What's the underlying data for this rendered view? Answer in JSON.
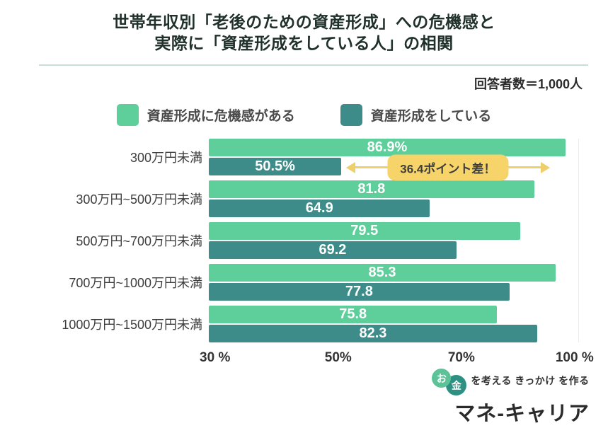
{
  "title": {
    "line1": "世帯年収別「老後のための資産形成」への危機感と",
    "line2": "実際に「資産形成をしている人」の相関"
  },
  "respondents": "回答者数＝1,000人",
  "legend": [
    {
      "label": "資産形成に危機感がある",
      "color": "#5ecf9a"
    },
    {
      "label": "資産形成をしている",
      "color": "#3e8c89"
    }
  ],
  "chart_data": {
    "type": "bar",
    "orientation": "horizontal",
    "title": "世帯年収別「老後のための資産形成」への危機感と実際に「資産形成をしている人」の相関",
    "categories": [
      "300万円未満",
      "300万円~500万円未満",
      "500万円~700万円未満",
      "700万円~1000万円未満",
      "1000万円~1500万円未満"
    ],
    "series": [
      {
        "name": "資産形成に危機感がある",
        "color": "#5ecf9a",
        "values": [
          86.9,
          81.8,
          79.5,
          85.3,
          75.8
        ],
        "value_labels": [
          "86.9%",
          "81.8",
          "79.5",
          "85.3",
          "75.8"
        ]
      },
      {
        "name": "資産形成をしている",
        "color": "#3e8c89",
        "values": [
          50.5,
          64.9,
          69.2,
          77.8,
          82.3
        ],
        "value_labels": [
          "50.5%",
          "64.9",
          "69.2",
          "77.8",
          "82.3"
        ]
      }
    ],
    "xlim": [
      30,
      100
    ],
    "ticks": [
      {
        "label": "30 %",
        "value": 30
      },
      {
        "label": "50%",
        "value": 50
      },
      {
        "label": "70%",
        "value": 70
      },
      {
        "label": "100 %",
        "value": 100
      }
    ],
    "annotation": {
      "text": "36.4ポイント差！",
      "row_index": 0,
      "color": "#f6d469"
    }
  },
  "footer": {
    "badge1": "お",
    "badge2": "金",
    "tagline": "を考える きっかけ を作る",
    "brand": "マネ-キャリア"
  },
  "colors": {
    "bar_aware": "#5ecf9a",
    "bar_doing": "#3e8c89",
    "annotation_fill": "#f6d469",
    "divider": "#c8dfd3",
    "title_text": "#20302a"
  }
}
